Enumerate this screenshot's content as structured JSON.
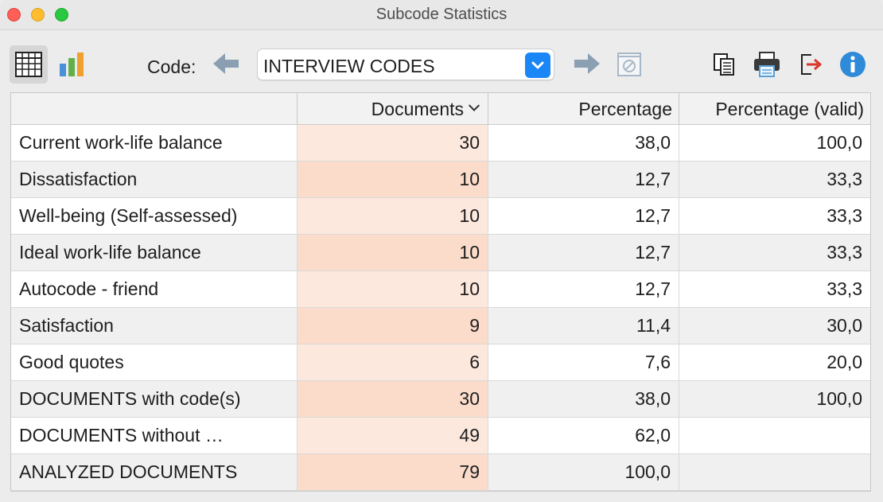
{
  "window": {
    "title": "Subcode Statistics"
  },
  "toolbar": {
    "code_label": "Code:",
    "code_select_value": "INTERVIEW CODES",
    "icons": {
      "table_view": "table-grid-icon",
      "chart_view": "bar-chart-icon",
      "previous": "arrow-left-icon",
      "dropdown": "chevron-down-icon",
      "next": "arrow-right-icon",
      "clear": "filter-clear-icon",
      "copy": "copy-icon",
      "print": "printer-icon",
      "export": "export-icon",
      "info": "info-icon"
    }
  },
  "table": {
    "columns": [
      "",
      "Documents",
      "Percentage",
      "Percentage (valid)"
    ],
    "rows": [
      [
        "Current work-life balance",
        "30",
        "38,0",
        "100,0"
      ],
      [
        "Dissatisfaction",
        "10",
        "12,7",
        "33,3"
      ],
      [
        "Well-being (Self-assessed)",
        "10",
        "12,7",
        "33,3"
      ],
      [
        "Ideal work-life balance",
        "10",
        "12,7",
        "33,3"
      ],
      [
        "Autocode - friend",
        "10",
        "12,7",
        "33,3"
      ],
      [
        "Satisfaction",
        "9",
        "11,4",
        "30,0"
      ],
      [
        "Good quotes",
        "6",
        "7,6",
        "20,0"
      ],
      [
        "DOCUMENTS with code(s)",
        "30",
        "38,0",
        "100,0"
      ],
      [
        "DOCUMENTS without …",
        "49",
        "62,0",
        ""
      ],
      [
        "ANALYZED DOCUMENTS",
        "79",
        "100,0",
        ""
      ]
    ]
  },
  "colors": {
    "documents_column": "#fde8dd",
    "documents_column_alt": "#fbdccb",
    "accent": "#1b86f5",
    "info": "#2f8ad8",
    "export_arrow": "#d9342b"
  }
}
